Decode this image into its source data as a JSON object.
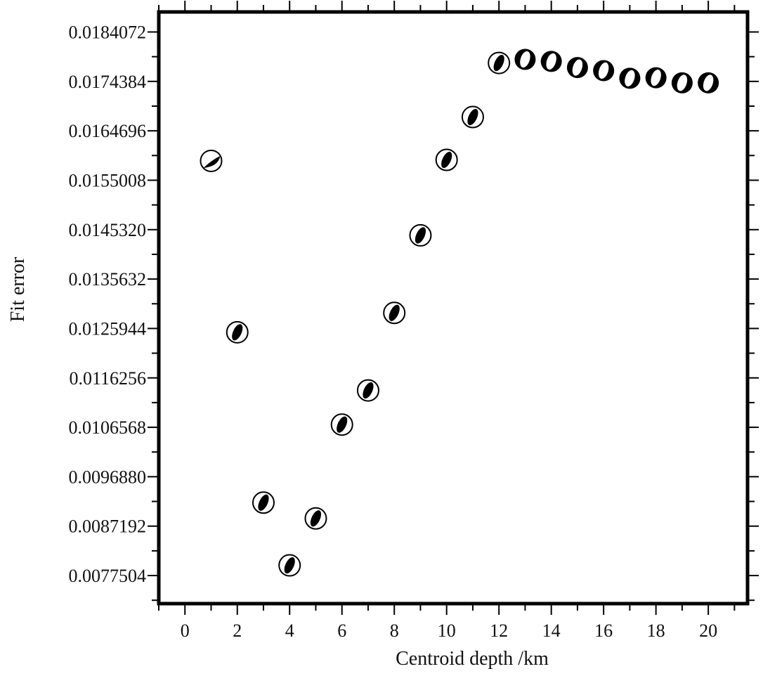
{
  "chart_data": {
    "type": "scatter",
    "title": "",
    "xlabel": "Centroid depth /km",
    "ylabel": "Fit error",
    "xlim": [
      -1,
      21.5
    ],
    "ylim": [
      0.0072,
      0.0188
    ],
    "grid": false,
    "legend": "none",
    "x_ticks": [
      "0",
      "2",
      "4",
      "6",
      "8",
      "10",
      "12",
      "14",
      "16",
      "18",
      "20"
    ],
    "x_tick_values": [
      0,
      2,
      4,
      6,
      8,
      10,
      12,
      14,
      16,
      18,
      20
    ],
    "y_ticks": [
      "0.0184072",
      "0.0174384",
      "0.0164696",
      "0.0155008",
      "0.0145320",
      "0.0135632",
      "0.0125944",
      "0.0116256",
      "0.0106568",
      "0.0096880",
      "0.0087192",
      "0.0077504"
    ],
    "y_tick_values": [
      0.0184072,
      0.0174384,
      0.0164696,
      0.0155008,
      0.014532,
      0.0135632,
      0.0125944,
      0.0116256,
      0.0106568,
      0.009688,
      0.0087192,
      0.0077504
    ],
    "marker": "focal-mechanism beachball",
    "marker_color": "#000000",
    "series": [
      {
        "x": [
          1,
          2,
          3,
          4,
          5,
          6,
          7,
          8,
          9,
          10,
          11,
          12,
          13,
          14,
          15,
          16,
          17,
          18,
          19,
          20
        ],
        "values": [
          0.01588,
          0.01252,
          0.00918,
          0.00795,
          0.00887,
          0.01071,
          0.01138,
          0.0129,
          0.01442,
          0.0159,
          0.01674,
          0.0178,
          0.01787,
          0.01783,
          0.01771,
          0.01765,
          0.0175,
          0.01751,
          0.01741,
          0.01741
        ],
        "marker_styles": [
          "thrust",
          "oblique",
          "oblique",
          "oblique",
          "oblique",
          "oblique",
          "oblique",
          "oblique",
          "oblique",
          "oblique",
          "oblique",
          "oblique",
          "white-oblique",
          "white-oblique",
          "white-oblique",
          "white-oblique",
          "white-oblique",
          "white-oblique",
          "white-oblique",
          "white-oblique"
        ]
      }
    ]
  }
}
